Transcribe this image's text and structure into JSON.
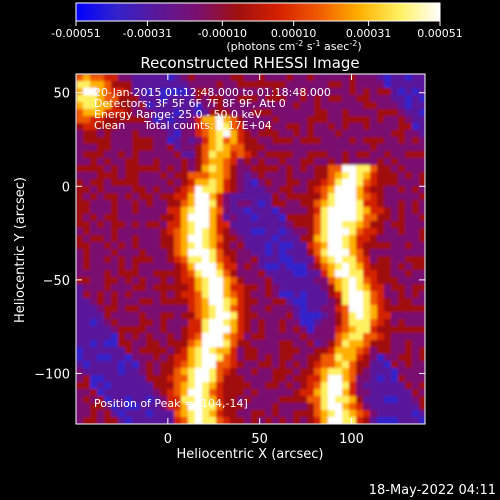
{
  "colorbar": {
    "tick_labels": [
      "-0.00051",
      "-0.00031",
      "-0.00010",
      "0.00010",
      "0.00031",
      "0.00051"
    ],
    "tick_values": [
      -0.00051,
      -0.00031,
      -0.0001,
      0.0001,
      0.00031,
      0.00051
    ],
    "range": [
      -0.00051,
      0.00051
    ],
    "unit_prefix": "(photons cm",
    "unit_sup1": "-2",
    "unit_mid": " s",
    "unit_sup2": "-1",
    "unit_mid2": " asec",
    "unit_sup3": "-2",
    "unit_suffix": ")",
    "stops": [
      "#0000ff",
      "#3322cc",
      "#5a189a",
      "#7a1070",
      "#a01010",
      "#d42000",
      "#f05a00",
      "#ffb000",
      "#fff060",
      "#ffffff"
    ]
  },
  "chart_data": {
    "type": "heatmap",
    "title": "Reconstructed RHESSI Image",
    "xlabel": "Heliocentric X (arcsec)",
    "ylabel": "Heliocentric Y (arcsec)",
    "xlim": [
      -50,
      140
    ],
    "ylim": [
      -127,
      60
    ],
    "x_ticks": [
      0,
      50,
      100
    ],
    "y_ticks": [
      50,
      0,
      -50,
      -100
    ],
    "x_tick_labels": [
      "0",
      "50",
      "100"
    ],
    "y_tick_labels": [
      "50",
      "0",
      "−50",
      "−100"
    ],
    "features": [
      {
        "name": "flux-ridge",
        "x_center": 20,
        "y_range": [
          -127,
          40
        ]
      },
      {
        "name": "flux-ridge",
        "x_center": 95,
        "y_range": [
          -127,
          15
        ]
      },
      {
        "name": "flux-blob",
        "x": -45,
        "y": 50
      }
    ],
    "peak": [
      104,
      -14
    ]
  },
  "annotations": {
    "time_range": "20-Jan-2015 01:12:48.000 to 01:18:48.000",
    "detectors": "Detectors: 3F 5F 6F 7F 8F 9F, Att 0",
    "energy": "Energy Range: 25.0 - 50.0 keV",
    "method": "Clean",
    "counts": "Total counts: 2.17E+04",
    "peak": "Position of Peak = [104,-14]"
  },
  "footer": {
    "date": "18-May-2022 04:11"
  }
}
